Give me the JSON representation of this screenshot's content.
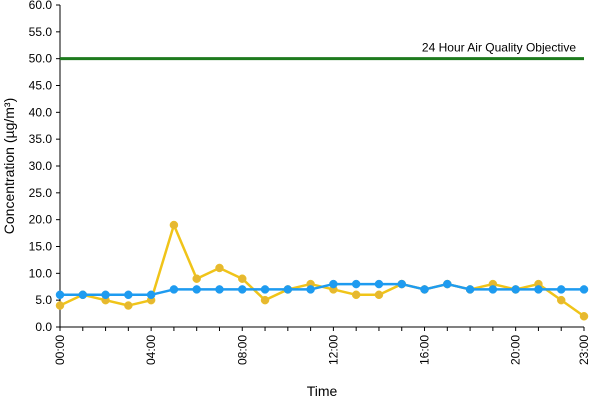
{
  "chart_data": {
    "type": "line",
    "title": "",
    "xlabel": "Time",
    "ylabel": "Concentration (µg/m³)",
    "ylim": [
      0,
      60
    ],
    "y_ticks": [
      "0.0",
      "5.0",
      "10.0",
      "15.0",
      "20.0",
      "25.0",
      "30.0",
      "35.0",
      "40.0",
      "45.0",
      "50.0",
      "55.0",
      "60.0"
    ],
    "x_tick_labels": [
      "00:00",
      "04:00",
      "08:00",
      "12:00",
      "16:00",
      "20:00",
      "23:00"
    ],
    "x_tick_hours": [
      0,
      4,
      8,
      12,
      16,
      20,
      23
    ],
    "x": [
      0,
      1,
      2,
      3,
      4,
      5,
      6,
      7,
      8,
      9,
      10,
      11,
      12,
      13,
      14,
      15,
      16,
      17,
      18,
      19,
      20,
      21,
      22,
      23
    ],
    "xlim": [
      0,
      23
    ],
    "grid": false,
    "series": [
      {
        "color": "#f0c419",
        "marker_color": "#e6b830",
        "values": [
          4,
          6,
          5,
          4,
          5,
          19,
          9,
          11,
          9,
          5,
          7,
          8,
          7,
          6,
          6,
          8,
          7,
          8,
          7,
          8,
          7,
          8,
          5,
          2
        ]
      },
      {
        "color": "#1e9bf0",
        "marker_color": "#1e9bf0",
        "values": [
          6,
          6,
          6,
          6,
          6,
          7,
          7,
          7,
          7,
          7,
          7,
          7,
          8,
          8,
          8,
          8,
          7,
          8,
          7,
          7,
          7,
          7,
          7,
          7
        ]
      }
    ],
    "objective": {
      "label": "24 Hour Air Quality Objective",
      "value": 50,
      "color": "#1d7a1d"
    }
  }
}
